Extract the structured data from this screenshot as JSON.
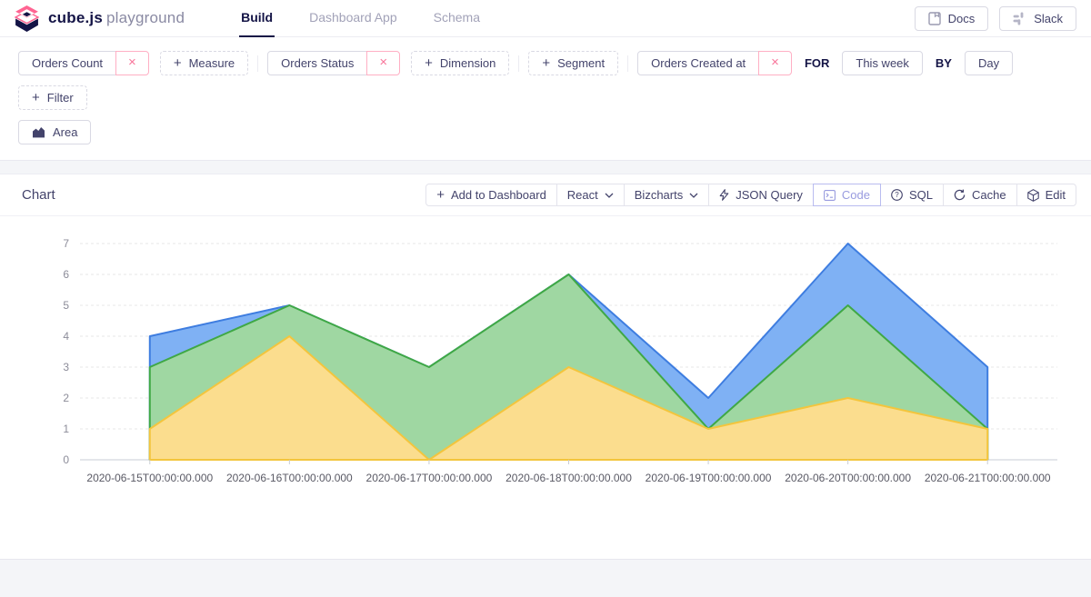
{
  "brand": {
    "bold": "cube.js",
    "light": "playground"
  },
  "nav": {
    "tabs": [
      {
        "label": "Build",
        "active": true
      },
      {
        "label": "Dashboard App",
        "active": false
      },
      {
        "label": "Schema",
        "active": false
      }
    ]
  },
  "header_actions": [
    {
      "label": "Docs"
    },
    {
      "label": "Slack"
    }
  ],
  "icons": {
    "plus": "+",
    "close": "×"
  },
  "colors": {
    "accent_pink": "#ff6492",
    "navy": "#141446",
    "text": "#43436b",
    "code_active": "#989bdf"
  },
  "query_builder": {
    "measures": {
      "chip": "Orders Count",
      "add_label": "Measure"
    },
    "dimensions": {
      "chip": "Orders Status",
      "add_label": "Dimension"
    },
    "segments": {
      "add_label": "Segment"
    },
    "time": {
      "chip": "Orders Created at",
      "for_label": "FOR",
      "date_range": "This week",
      "by_label": "BY",
      "granularity": "Day"
    },
    "filters": {
      "add_label": "Filter"
    },
    "chart_type": "Area"
  },
  "chart_section": {
    "title": "Chart",
    "toolbar": [
      {
        "label": "Add to Dashboard",
        "active": false
      },
      {
        "label": "React",
        "active": false
      },
      {
        "label": "Bizcharts",
        "active": false
      },
      {
        "label": "JSON Query",
        "active": false
      },
      {
        "label": "Code",
        "active": true
      },
      {
        "label": "SQL",
        "active": false
      },
      {
        "label": "Cache",
        "active": false
      },
      {
        "label": "Edit",
        "active": false
      }
    ]
  },
  "chart_data": {
    "type": "area",
    "title": "Chart",
    "xlabel": "",
    "ylabel": "",
    "legend": "none",
    "grid": "horizontal-dashed",
    "ylim": [
      0,
      7
    ],
    "yticks": [
      0,
      1,
      2,
      3,
      4,
      5,
      6,
      7
    ],
    "categories": [
      "2020-06-15T00:00:00.000",
      "2020-06-16T00:00:00.000",
      "2020-06-17T00:00:00.000",
      "2020-06-18T00:00:00.000",
      "2020-06-19T00:00:00.000",
      "2020-06-20T00:00:00.000",
      "2020-06-21T00:00:00.000"
    ],
    "series": [
      {
        "name": "series-blue",
        "values": [
          4,
          5,
          3,
          6,
          2,
          7,
          3
        ],
        "fill": "#7fb1f4",
        "stroke": "#3e7de0"
      },
      {
        "name": "series-green",
        "values": [
          3,
          5,
          3,
          6,
          1,
          5,
          1
        ],
        "fill": "#9fd7a2",
        "stroke": "#3fa845"
      },
      {
        "name": "series-yellow",
        "values": [
          1,
          4,
          0,
          3,
          1,
          2,
          1
        ],
        "fill": "#fbdd8e",
        "stroke": "#f3c53d"
      }
    ]
  }
}
